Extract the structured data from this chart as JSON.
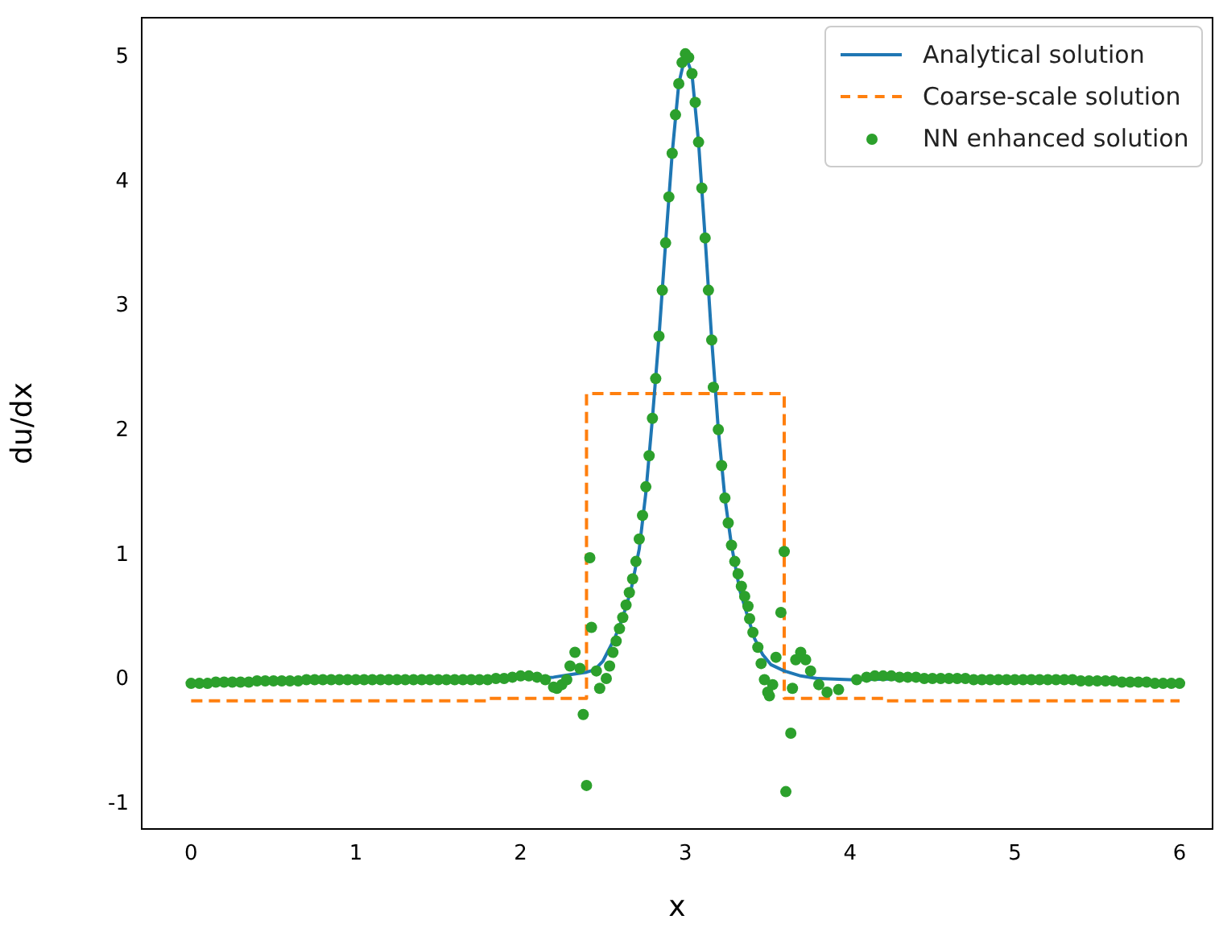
{
  "chart_data": {
    "type": "line",
    "xlabel": "x",
    "ylabel": "du/dx",
    "xlim": [
      -0.3,
      6.2
    ],
    "ylim": [
      -1.2,
      5.32
    ],
    "xticks": [
      0,
      1,
      2,
      3,
      4,
      5,
      6
    ],
    "yticks": [
      -1,
      0,
      1,
      2,
      3,
      4,
      5
    ],
    "grid": false,
    "legend": "top right",
    "series": [
      {
        "name": "Analytical solution",
        "color": "#1f77b4",
        "line_style": "solid",
        "marker": "none",
        "x": [
          2,
          2.2,
          2.3,
          2.4,
          2.45,
          2.5,
          2.57,
          2.62,
          2.67,
          2.72,
          2.76,
          2.8,
          2.84,
          2.88,
          2.92,
          2.96,
          3,
          3.04,
          3.08,
          3.12,
          3.16,
          3.2,
          3.24,
          3.28,
          3.33,
          3.38,
          3.42,
          3.47,
          3.52,
          3.6,
          3.7,
          3.8,
          4,
          4.5,
          5
        ],
        "values": [
          0.01,
          0.02,
          0.04,
          0.06,
          0.08,
          0.15,
          0.33,
          0.5,
          0.72,
          1.05,
          1.5,
          2.1,
          2.76,
          3.51,
          4.23,
          4.79,
          5.02,
          4.87,
          4.32,
          3.55,
          2.73,
          2.01,
          1.46,
          1.08,
          0.72,
          0.5,
          0.33,
          0.2,
          0.12,
          0.07,
          0.03,
          0.01,
          0,
          0.01,
          0
        ]
      },
      {
        "name": "Coarse-scale solution",
        "type": "step",
        "color": "#ff7f0e",
        "line_style": "dashed",
        "marker": "none",
        "x": [
          0,
          1.8,
          2.4,
          3.6,
          4.2,
          6
        ],
        "values": [
          -0.17,
          -0.15,
          2.3,
          -0.15,
          -0.17,
          -0.17
        ]
      },
      {
        "name": "NN enhanced solution",
        "type": "scatter",
        "color": "#2ca02c",
        "marker": "circle",
        "x": [
          0,
          0.05,
          0.1,
          0.15,
          0.2,
          0.25,
          0.3,
          0.35,
          0.4,
          0.45,
          0.5,
          0.55,
          0.6,
          0.65,
          0.7,
          0.75,
          0.8,
          0.85,
          0.9,
          0.95,
          1,
          1.05,
          1.1,
          1.15,
          1.2,
          1.25,
          1.3,
          1.35,
          1.4,
          1.45,
          1.5,
          1.55,
          1.6,
          1.65,
          1.7,
          1.75,
          1.8,
          1.85,
          1.9,
          1.95,
          2,
          2.05,
          2.1,
          2.15,
          2.2,
          2.22,
          2.25,
          2.28,
          2.3,
          2.33,
          2.36,
          2.38,
          2.4,
          2.42,
          2.43,
          2.46,
          2.48,
          2.52,
          2.54,
          2.56,
          2.58,
          2.6,
          2.62,
          2.64,
          2.66,
          2.68,
          2.7,
          2.72,
          2.74,
          2.76,
          2.78,
          2.8,
          2.82,
          2.84,
          2.86,
          2.88,
          2.9,
          2.92,
          2.94,
          2.96,
          2.98,
          3,
          3.02,
          3.04,
          3.06,
          3.08,
          3.1,
          3.12,
          3.14,
          3.16,
          3.17,
          3.2,
          3.22,
          3.24,
          3.26,
          3.28,
          3.3,
          3.32,
          3.34,
          3.36,
          3.38,
          3.39,
          3.41,
          3.44,
          3.46,
          3.48,
          3.5,
          3.51,
          3.53,
          3.55,
          3.58,
          3.6,
          3.61,
          3.64,
          3.65,
          3.67,
          3.7,
          3.73,
          3.76,
          3.81,
          3.86,
          3.93,
          4.04,
          4.1,
          4.15,
          4.2,
          4.25,
          4.3,
          4.35,
          4.4,
          4.45,
          4.5,
          4.55,
          4.6,
          4.65,
          4.7,
          4.75,
          4.8,
          4.85,
          4.9,
          4.95,
          5,
          5.05,
          5.1,
          5.15,
          5.2,
          5.25,
          5.3,
          5.35,
          5.4,
          5.45,
          5.5,
          5.55,
          5.6,
          5.65,
          5.7,
          5.75,
          5.8,
          5.85,
          5.9,
          5.95,
          6
        ],
        "values": [
          -0.03,
          -0.03,
          -0.03,
          -0.02,
          -0.02,
          -0.02,
          -0.02,
          -0.02,
          -0.01,
          -0.01,
          -0.01,
          -0.01,
          -0.01,
          -0.01,
          0,
          0,
          0,
          0,
          0,
          0,
          0,
          0,
          0,
          0,
          0,
          0,
          0,
          0,
          0,
          0,
          0,
          0,
          0,
          0,
          0,
          0,
          0,
          0.01,
          0.01,
          0.02,
          0.03,
          0.03,
          0.02,
          0,
          -0.06,
          -0.07,
          -0.04,
          0,
          0.11,
          0.22,
          0.09,
          -0.28,
          -0.85,
          0.98,
          0.42,
          0.07,
          -0.07,
          0.01,
          0.11,
          0.22,
          0.31,
          0.41,
          0.5,
          0.6,
          0.7,
          0.81,
          0.95,
          1.13,
          1.32,
          1.55,
          1.8,
          2.1,
          2.42,
          2.76,
          3.13,
          3.51,
          3.88,
          4.23,
          4.54,
          4.79,
          4.96,
          5.03,
          5,
          4.87,
          4.64,
          4.32,
          3.95,
          3.55,
          3.13,
          2.73,
          2.35,
          2.01,
          1.72,
          1.46,
          1.26,
          1.08,
          0.95,
          0.85,
          0.75,
          0.67,
          0.59,
          0.49,
          0.38,
          0.26,
          0.13,
          0,
          -0.1,
          -0.13,
          -0.04,
          0.18,
          0.54,
          1.03,
          -0.9,
          -0.43,
          -0.07,
          0.16,
          0.22,
          0.16,
          0.07,
          -0.04,
          -0.1,
          -0.08,
          0,
          0.02,
          0.03,
          0.03,
          0.03,
          0.02,
          0.02,
          0.02,
          0.01,
          0.01,
          0.01,
          0.01,
          0.01,
          0.01,
          0,
          0,
          0,
          0,
          0,
          0,
          0,
          0,
          0,
          0,
          0,
          0,
          0,
          -0.01,
          -0.01,
          -0.01,
          -0.01,
          -0.01,
          -0.02,
          -0.02,
          -0.02,
          -0.02,
          -0.03,
          -0.03,
          -0.03,
          -0.03
        ]
      }
    ]
  }
}
